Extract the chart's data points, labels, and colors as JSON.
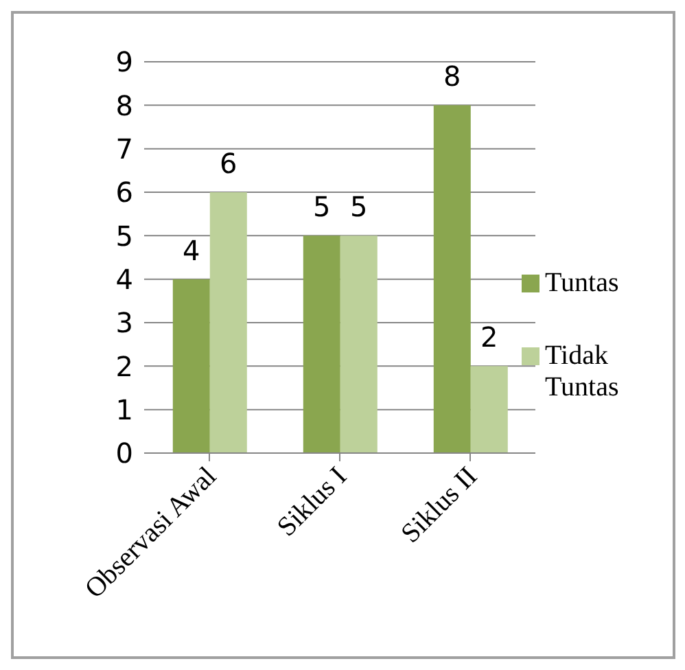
{
  "chart_data": {
    "type": "bar",
    "categories": [
      "Observasi Awal",
      "Siklus I",
      "Siklus II"
    ],
    "series": [
      {
        "name": "Tuntas",
        "color": "#8aa64f",
        "values": [
          4,
          5,
          8
        ]
      },
      {
        "name": "Tidak Tuntas",
        "color": "#bdd19a",
        "values": [
          6,
          5,
          2
        ]
      }
    ],
    "ylim": [
      0,
      9
    ],
    "yticks": [
      0,
      1,
      2,
      3,
      4,
      5,
      6,
      7,
      8,
      9
    ],
    "grid": "y",
    "legend": "right",
    "data_labels": true
  }
}
